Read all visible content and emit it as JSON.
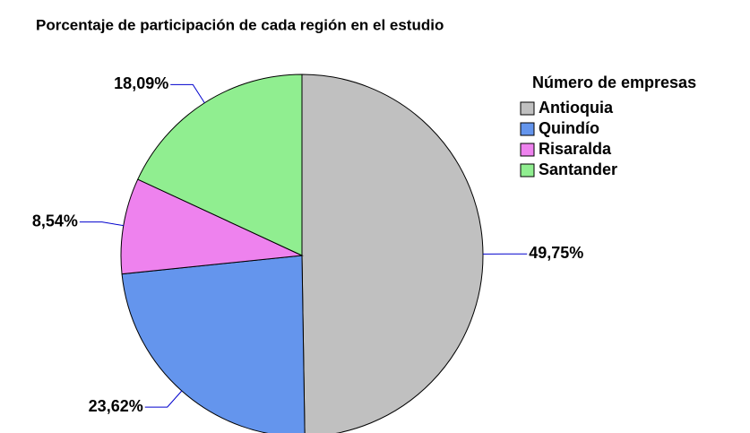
{
  "chart_data": {
    "type": "pie",
    "title": "Porcentaje de participación de cada región en el estudio",
    "legend_title": "Número de empresas",
    "categories": [
      "Antioquia",
      "Quindío",
      "Risaralda",
      "Santander"
    ],
    "values": [
      49.75,
      23.62,
      8.54,
      18.09
    ],
    "value_labels": [
      "49,75%",
      "23,62%",
      "8,54%",
      "18,09%"
    ],
    "colors": [
      "#c0c0c0",
      "#6495ed",
      "#ee82ee",
      "#90ee90"
    ],
    "legend": "right"
  }
}
